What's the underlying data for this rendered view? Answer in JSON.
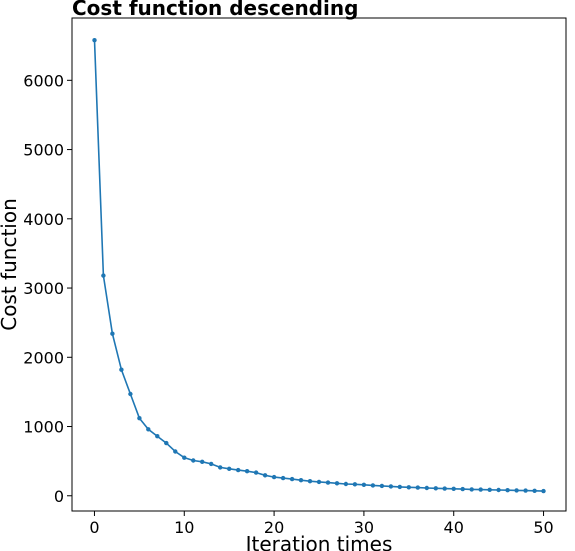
{
  "chart_data": {
    "type": "line",
    "title": "Cost function descending",
    "xlabel": "Iteration times",
    "ylabel": "Cost function",
    "xlim": [
      -2.5,
      52.5
    ],
    "ylim": [
      -220,
      6900
    ],
    "xticks": [
      0,
      10,
      20,
      30,
      40,
      50
    ],
    "yticks": [
      0,
      1000,
      2000,
      3000,
      4000,
      5000,
      6000
    ],
    "grid": false,
    "legend": "none",
    "marker": "dot",
    "line_color": "#1f77b4",
    "series": [
      {
        "x": [
          0,
          1,
          2,
          3,
          4,
          5,
          6,
          7,
          8,
          9,
          10,
          11,
          12,
          13,
          14,
          15,
          16,
          17,
          18,
          19,
          20,
          21,
          22,
          23,
          24,
          25,
          26,
          27,
          28,
          29,
          30,
          31,
          32,
          33,
          34,
          35,
          36,
          37,
          38,
          39,
          40,
          41,
          42,
          43,
          44,
          45,
          46,
          47,
          48,
          49,
          50
        ],
        "values": [
          6580,
          3180,
          2340,
          1820,
          1470,
          1120,
          960,
          860,
          760,
          640,
          550,
          510,
          490,
          460,
          410,
          390,
          370,
          355,
          335,
          295,
          270,
          255,
          240,
          225,
          210,
          200,
          190,
          180,
          170,
          165,
          158,
          150,
          143,
          136,
          128,
          122,
          118,
          112,
          108,
          104,
          100,
          96,
          92,
          89,
          86,
          83,
          80,
          77,
          74,
          72,
          68
        ]
      }
    ]
  }
}
